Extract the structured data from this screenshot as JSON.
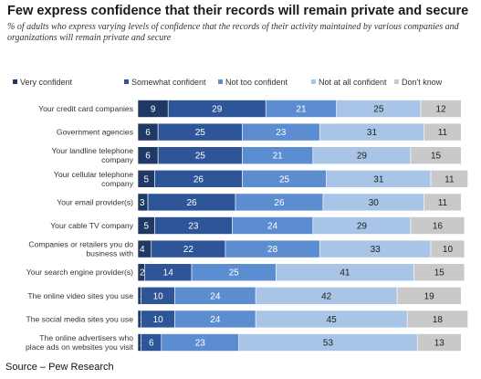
{
  "title": "Few express confidence that their records will remain private and secure",
  "subtitle": "% of adults who express varying levels of confidence that the records of their activity maintained by various companies and organizations will remain private and secure",
  "source": "Source – Pew Research",
  "chart_data": {
    "type": "bar",
    "orientation": "horizontal",
    "stacked": true,
    "legend_position": "top",
    "grid": false,
    "categories": [
      "Your credit card companies",
      "Government agencies",
      "Your landline telephone company",
      "Your cellular telephone company",
      "Your email provider(s)",
      "Your cable TV company",
      "Companies or retailers you do business with",
      "Your search engine provider(s)",
      "The online video sites you use",
      "The social media sites you use",
      "The online advertisers who place ads on websites you visit"
    ],
    "category_lines": [
      [
        "Your credit card companies"
      ],
      [
        "Government agencies"
      ],
      [
        "Your landline telephone",
        "company"
      ],
      [
        "Your cellular telephone",
        "company"
      ],
      [
        "Your email provider(s)"
      ],
      [
        "Your cable TV company"
      ],
      [
        "Companies or retailers you do",
        "business with"
      ],
      [
        "Your search engine provider(s)"
      ],
      [
        "The online video sites you use"
      ],
      [
        "The social media sites you use"
      ],
      [
        "The online advertisers who",
        "place ads on websites you visit"
      ]
    ],
    "series": [
      {
        "name": "Very confident",
        "color": "#1f3864",
        "label_color": "#ffffff",
        "values": [
          9,
          6,
          6,
          5,
          3,
          5,
          4,
          2,
          1,
          1,
          1
        ]
      },
      {
        "name": "Somewhat confident",
        "color": "#2e5597",
        "label_color": "#ffffff",
        "values": [
          29,
          25,
          25,
          26,
          26,
          23,
          22,
          14,
          10,
          10,
          6
        ]
      },
      {
        "name": "Not too confident",
        "color": "#5b8dd0",
        "label_color": "#ffffff",
        "values": [
          21,
          23,
          21,
          25,
          26,
          24,
          28,
          25,
          24,
          24,
          23
        ]
      },
      {
        "name": "Not at all confident",
        "color": "#a8c4e6",
        "label_color": "#222222",
        "values": [
          25,
          31,
          29,
          31,
          30,
          29,
          33,
          41,
          42,
          45,
          53
        ]
      },
      {
        "name": "Don't know",
        "color": "#c9c9c9",
        "label_color": "#222222",
        "values": [
          12,
          11,
          15,
          11,
          11,
          16,
          10,
          15,
          19,
          18,
          13
        ]
      }
    ],
    "xlim": [
      0,
      100
    ]
  }
}
